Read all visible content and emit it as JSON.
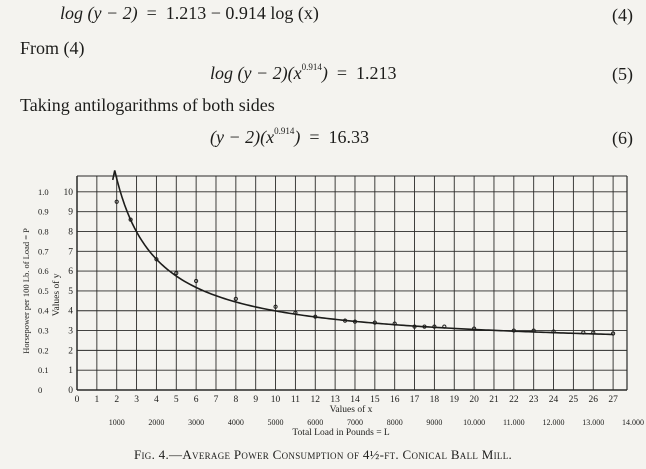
{
  "equations": [
    {
      "id": "eq4",
      "lhs": "log (y − 2)",
      "eq": "=",
      "rhs": "1.213 − 0.914 log (x)",
      "number": "(4)"
    },
    {
      "id": "eq5",
      "lhs_a": "log (y − 2)(x",
      "lhs_exp": "0.914",
      "lhs_b": ")",
      "eq": "=",
      "rhs": "1.213",
      "number": "(5)"
    },
    {
      "id": "eq6",
      "lhs_a": "(y − 2)(x",
      "lhs_exp": "0.914",
      "lhs_b": ")",
      "eq": "=",
      "rhs": "16.33",
      "number": "(6)"
    }
  ],
  "prose": {
    "from": "From (4)",
    "antilog": "Taking antilogarithms of both sides"
  },
  "figure": {
    "caption_prefix": "Fig. 4.",
    "caption_text": "—Average Power Consumption of 4½-ft. Conical Ball Mill."
  },
  "chart_data": {
    "type": "line",
    "x_axis": {
      "label": "Values of x",
      "range": [
        0,
        27
      ],
      "ticks": [
        "0",
        "1",
        "2",
        "3",
        "4",
        "5",
        "6",
        "7",
        "8",
        "9",
        "10",
        "11",
        "12",
        "13",
        "14",
        "15",
        "16",
        "17",
        "18",
        "19",
        "20",
        "21",
        "22",
        "23",
        "24",
        "25",
        "26",
        "27"
      ]
    },
    "secondary_x_axis": {
      "label": "Total Load in Pounds = L",
      "ticks": [
        "1000",
        "2000",
        "3000",
        "4000",
        "5000",
        "6000",
        "7000",
        "8000",
        "9000",
        "10.000",
        "11.000",
        "12.000",
        "13.000",
        "14.000"
      ],
      "tick_positions_x": [
        2,
        4,
        6,
        8,
        10,
        12,
        14,
        16,
        18,
        20,
        22,
        24,
        26,
        28
      ]
    },
    "y_axis_inner": {
      "label": "Values of y",
      "range": [
        0,
        10.5
      ],
      "ticks": [
        "0",
        "1",
        "2",
        "3",
        "4",
        "5",
        "6",
        "7",
        "8",
        "9",
        "10"
      ]
    },
    "y_axis_outer": {
      "label": "Horsepower per 100 Lb. of Load = P",
      "ticks": [
        "0",
        "0.1",
        "0.2",
        "0.3",
        "0.4",
        "0.5",
        "0.6",
        "0.7",
        "0.8",
        "0.9",
        "1.0"
      ]
    },
    "grid": true,
    "series": [
      {
        "name": "",
        "curve_formula": "(y − 2)(x^0.914) = 16.33",
        "x_range": [
          1.9,
          27
        ],
        "points": [
          {
            "x": 2.0,
            "y": 9.5
          },
          {
            "x": 2.7,
            "y": 8.6
          },
          {
            "x": 4.0,
            "y": 6.6
          },
          {
            "x": 5.0,
            "y": 5.9
          },
          {
            "x": 6.0,
            "y": 5.5
          },
          {
            "x": 8.0,
            "y": 4.6
          },
          {
            "x": 10.0,
            "y": 4.2
          },
          {
            "x": 11.0,
            "y": 3.9
          },
          {
            "x": 12.0,
            "y": 3.7
          },
          {
            "x": 13.5,
            "y": 3.5
          },
          {
            "x": 14.0,
            "y": 3.45
          },
          {
            "x": 15.0,
            "y": 3.4
          },
          {
            "x": 16.0,
            "y": 3.35
          },
          {
            "x": 17.0,
            "y": 3.2
          },
          {
            "x": 17.5,
            "y": 3.2
          },
          {
            "x": 18.0,
            "y": 3.2
          },
          {
            "x": 18.5,
            "y": 3.2
          },
          {
            "x": 20.0,
            "y": 3.1
          },
          {
            "x": 22.0,
            "y": 3.0
          },
          {
            "x": 23.0,
            "y": 3.0
          },
          {
            "x": 24.0,
            "y": 2.95
          },
          {
            "x": 25.5,
            "y": 2.9
          },
          {
            "x": 26.0,
            "y": 2.9
          },
          {
            "x": 27.0,
            "y": 2.85
          }
        ]
      }
    ]
  }
}
